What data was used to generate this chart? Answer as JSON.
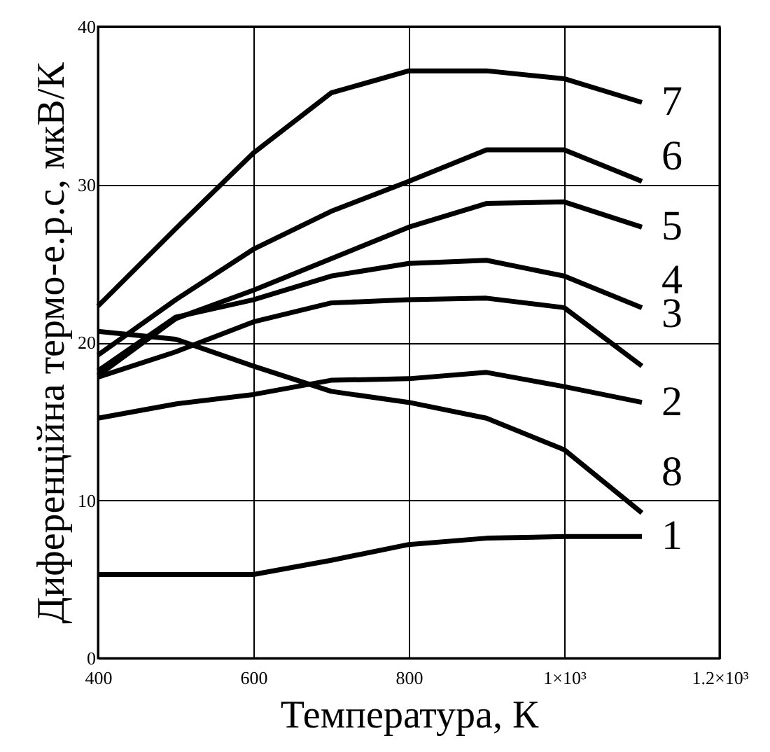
{
  "chart_data": {
    "type": "line",
    "xlabel": "Температура, К",
    "ylabel": "Диференційна термо-е.р.с, мкВ/К",
    "x": [
      400,
      500,
      600,
      700,
      800,
      900,
      1000,
      1100
    ],
    "xlim": [
      400,
      1200
    ],
    "xticks": [
      400,
      600,
      800,
      {
        "value": 1000,
        "label": "1×10³"
      },
      {
        "value": 1200,
        "label": "1.2×10³"
      }
    ],
    "ylim": [
      0,
      40
    ],
    "yticks": [
      0,
      10,
      20,
      30,
      40
    ],
    "grid": true,
    "marker": "none",
    "line_style": "solid",
    "series": [
      {
        "name": "1",
        "color": "#000000",
        "values": [
          5.3,
          5.3,
          5.3,
          6.2,
          7.2,
          7.6,
          7.7,
          7.7
        ]
      },
      {
        "name": "2",
        "color": "#000000",
        "values": [
          15.2,
          16.1,
          16.7,
          17.6,
          17.7,
          18.1,
          17.2,
          16.2
        ]
      },
      {
        "name": "3",
        "color": "#000000",
        "values": [
          17.8,
          19.4,
          21.3,
          22.5,
          22.7,
          22.8,
          22.2,
          18.5
        ]
      },
      {
        "name": "4",
        "color": "#000000",
        "values": [
          18.2,
          21.6,
          22.7,
          24.2,
          25.0,
          25.2,
          24.2,
          22.2
        ]
      },
      {
        "name": "5",
        "color": "#000000",
        "values": [
          17.9,
          21.5,
          23.3,
          25.3,
          27.3,
          28.8,
          28.9,
          27.3
        ]
      },
      {
        "name": "6",
        "color": "#000000",
        "values": [
          19.2,
          22.7,
          25.9,
          28.3,
          30.2,
          32.2,
          32.2,
          30.2
        ]
      },
      {
        "name": "7",
        "color": "#000000",
        "values": [
          22.3,
          27.2,
          32.0,
          35.8,
          37.2,
          37.2,
          36.7,
          35.2
        ]
      },
      {
        "name": "8",
        "color": "#000000",
        "values": [
          20.7,
          20.2,
          18.5,
          16.9,
          16.2,
          15.2,
          13.2,
          9.2
        ]
      }
    ]
  }
}
